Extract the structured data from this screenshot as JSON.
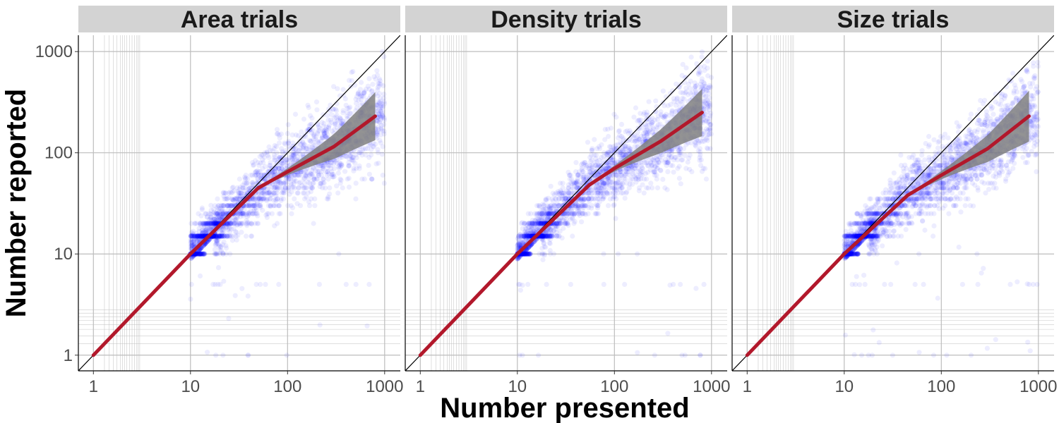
{
  "chart_data": {
    "type": "scatter",
    "xlabel": "Number presented",
    "ylabel": "Number reported",
    "x_scale": "log10",
    "y_scale": "log10",
    "xlim": [
      0.7,
      1450
    ],
    "ylim": [
      0.7,
      1450
    ],
    "x_ticks": [
      1,
      10,
      100,
      1000
    ],
    "y_ticks": [
      1,
      10,
      100,
      1000
    ],
    "x_tick_labels": [
      "1",
      "10",
      "100",
      "1000"
    ],
    "y_tick_labels": [
      "1",
      "10",
      "100",
      "1000"
    ],
    "grid": true,
    "reference_line": "y = x",
    "colors": {
      "points": "#0000ff",
      "fit_line": "#b2182b",
      "ribbon": "#808080",
      "strip": "#d3d3d3",
      "grid": "#bdbdbd"
    },
    "panels": [
      {
        "title": "Area trials",
        "fit_line": [
          [
            1,
            1
          ],
          [
            10,
            10
          ],
          [
            50,
            45
          ],
          [
            100,
            65
          ],
          [
            300,
            115
          ],
          [
            800,
            230
          ]
        ],
        "ribbon_at_max": [
          140,
          400
        ],
        "point_cloud": {
          "x_range": [
            10,
            1000
          ],
          "y_min_at_x10": 9,
          "typical_y_at_1000": 180
        }
      },
      {
        "title": "Density trials",
        "fit_line": [
          [
            1,
            1
          ],
          [
            10,
            10
          ],
          [
            55,
            48
          ],
          [
            100,
            70
          ],
          [
            300,
            130
          ],
          [
            800,
            250
          ]
        ],
        "ribbon_at_max": [
          150,
          420
        ],
        "point_cloud": {
          "x_range": [
            10,
            1000
          ],
          "y_min_at_x10": 9,
          "typical_y_at_1000": 190
        }
      },
      {
        "title": "Size trials",
        "fit_line": [
          [
            1,
            1
          ],
          [
            10,
            10
          ],
          [
            45,
            38
          ],
          [
            100,
            60
          ],
          [
            300,
            110
          ],
          [
            800,
            230
          ]
        ],
        "ribbon_at_max": [
          135,
          410
        ],
        "point_cloud": {
          "x_range": [
            10,
            1000
          ],
          "y_min_at_x10": 6,
          "typical_y_at_1000": 170
        }
      }
    ]
  }
}
